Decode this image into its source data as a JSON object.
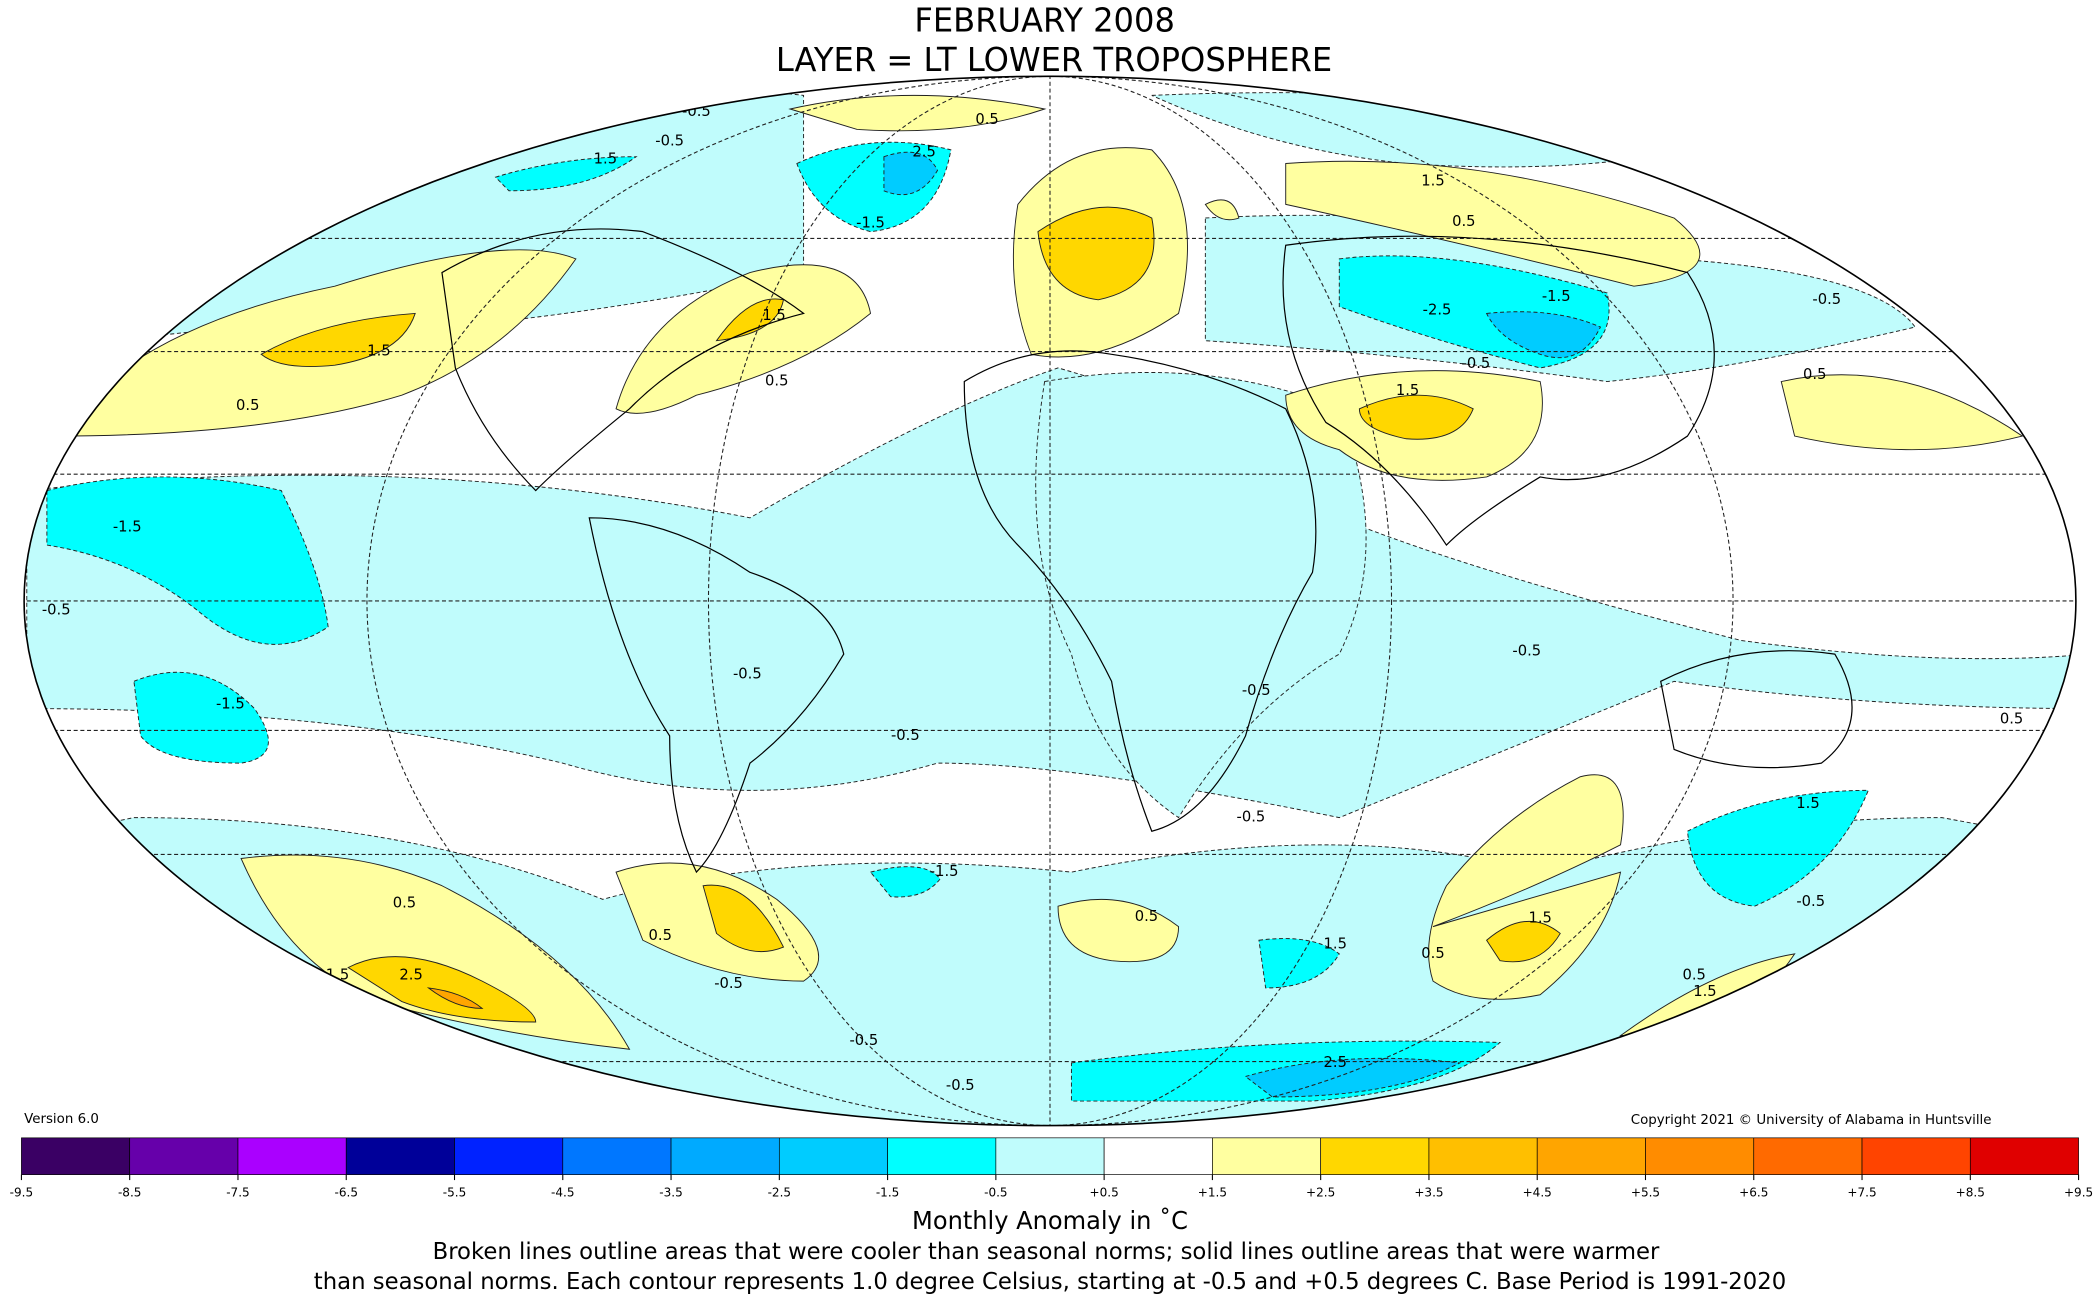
{
  "header": {
    "title": "FEBRUARY 2008",
    "subtitle": "LAYER = LT LOWER TROPOSPHERE"
  },
  "version": "Version 6.0",
  "copyright": "Copyright 2021 © University of Alabama in Huntsville",
  "contour_labels": [
    "-0.5",
    "-0.5",
    "1.5",
    "2.5",
    "0.5",
    "-1.5",
    "1.5",
    "0.5",
    "1.5",
    "0.5",
    "1.5",
    "0.5",
    "-1.5",
    "-2.5",
    "-0.5",
    "0.5",
    "-0.5",
    "1.5",
    "-1.5",
    "-0.5",
    "-1.5",
    "-0.5",
    "-0.5",
    "-0.5",
    "-0.5",
    "-0.5",
    "1.5",
    "-1.5",
    "0.5",
    "1.5",
    "2.5",
    "0.5",
    "-0.5",
    "0.5",
    "1.5",
    "1.5",
    "0.5",
    "-0.5",
    "2.5",
    "-0.5",
    "-0.5",
    "0.5",
    "1.5",
    "0.5"
  ],
  "colorbar": {
    "ticks": [
      -9.5,
      -8.5,
      -7.5,
      -6.5,
      -5.5,
      -4.5,
      -3.5,
      -2.5,
      -1.5,
      -0.5,
      {
        "value": 0.5,
        "label": "+0.5"
      },
      {
        "value": 1.5,
        "label": "+1.5"
      },
      {
        "value": 2.5,
        "label": "+2.5"
      },
      {
        "value": 3.5,
        "label": "+3.5"
      },
      {
        "value": 4.5,
        "label": "+4.5"
      },
      {
        "value": 5.5,
        "label": "+5.5"
      },
      {
        "value": 6.5,
        "label": "+6.5"
      },
      {
        "value": 7.5,
        "label": "+7.5"
      },
      {
        "value": 8.5,
        "label": "+8.5"
      },
      {
        "value": 9.5,
        "label": "+9.5"
      }
    ],
    "colors": [
      "#3a0064",
      "#6600aa",
      "#aa00ff",
      "#000099",
      "#0022ff",
      "#0077ff",
      "#00aaff",
      "#00ccff",
      "#00ffff",
      "#c0fcfc",
      "#ffffff",
      "#ffffa0",
      "#ffd700",
      "#ffbf00",
      "#ffa500",
      "#ff8c00",
      "#ff6a00",
      "#ff4400",
      "#e00000"
    ],
    "label": "Monthly Anomaly in ˚C"
  },
  "caption": [
    "Broken lines outline areas that were cooler than seasonal norms; solid lines outline areas that were warmer",
    "than seasonal norms. Each contour represents 1.0 degree Celsius, starting at -0.5 and +0.5 degrees C. Base Period is 1991-2020"
  ]
}
